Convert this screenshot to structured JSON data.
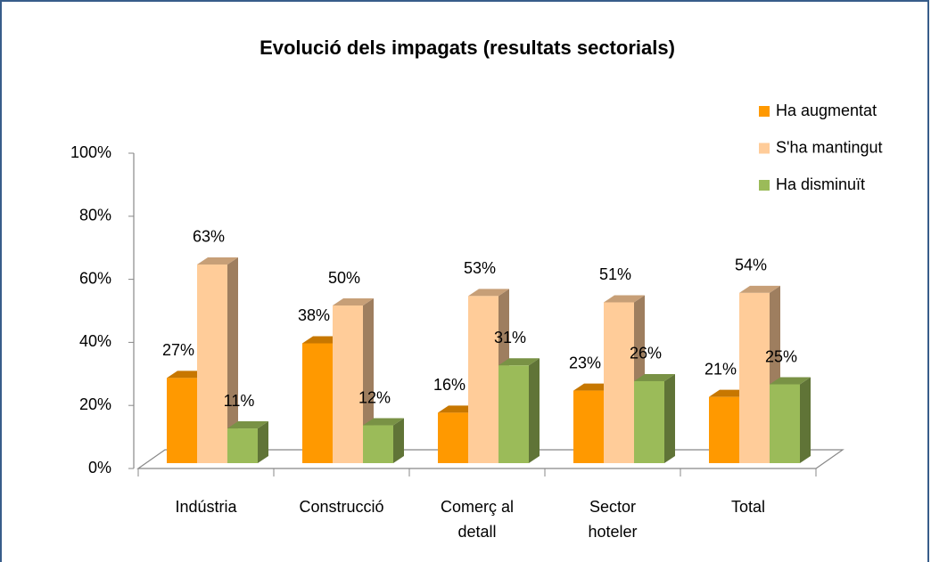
{
  "chart_data": {
    "type": "bar3d",
    "title": "Evolució dels impagats (resultats sectorials)",
    "categories": [
      "Indústria",
      "Construcció",
      "Comerç al detall",
      "Sector hoteler",
      "Total"
    ],
    "series": [
      {
        "name": "Ha augmentat",
        "color": "#ff9900",
        "values": [
          27,
          38,
          16,
          23,
          21
        ],
        "value_labels": [
          "27%",
          "38%",
          "16%",
          "23%",
          "21%"
        ]
      },
      {
        "name": "S'ha mantingut",
        "color": "#ffcc99",
        "values": [
          63,
          50,
          53,
          51,
          54
        ],
        "value_labels": [
          "63%",
          "50%",
          "53%",
          "51%",
          "54%"
        ]
      },
      {
        "name": "Ha disminuït",
        "color": "#9bbb59",
        "values": [
          11,
          12,
          31,
          26,
          25
        ],
        "value_labels": [
          "11%",
          "12%",
          "31%",
          "26%",
          "25%"
        ]
      }
    ],
    "ylim": [
      0,
      100
    ],
    "yticks": [
      {
        "value": 0,
        "label": "0%"
      },
      {
        "value": 20,
        "label": "20%"
      },
      {
        "value": 40,
        "label": "40%"
      },
      {
        "value": 60,
        "label": "60%"
      },
      {
        "value": 80,
        "label": "80%"
      },
      {
        "value": 100,
        "label": "100%"
      }
    ],
    "legend": "right"
  }
}
